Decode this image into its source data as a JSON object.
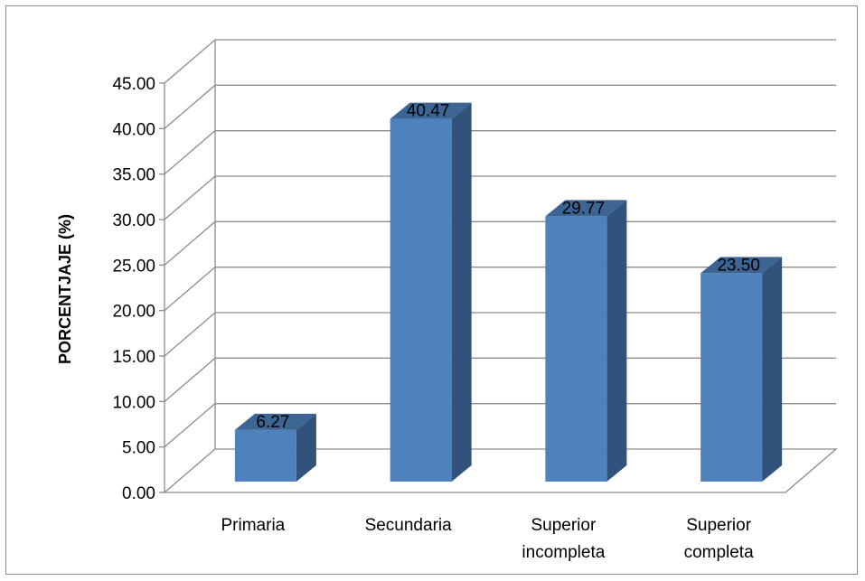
{
  "chart_data": {
    "type": "bar",
    "categories": [
      [
        "Primaria"
      ],
      [
        "Secundaria"
      ],
      [
        "Superior",
        "incompleta"
      ],
      [
        "Superior",
        "completa"
      ]
    ],
    "values": [
      6.27,
      40.47,
      29.77,
      23.5
    ],
    "value_labels": [
      "6.27",
      "40.47",
      "29.77",
      "23.50"
    ],
    "ylabel": "PORCENTJAJE (%)",
    "xlabel": "",
    "ylim": [
      0,
      45
    ],
    "yticks": [
      "0.00",
      "5.00",
      "10.00",
      "15.00",
      "20.00",
      "25.00",
      "30.00",
      "35.00",
      "40.00",
      "45.00"
    ],
    "grid": true,
    "style": "3d-column",
    "colors": {
      "bar_front": "#4f81bd",
      "bar_side": "#31527a",
      "bar_top": "#3c6594",
      "gridline": "#8c8c8c"
    }
  }
}
